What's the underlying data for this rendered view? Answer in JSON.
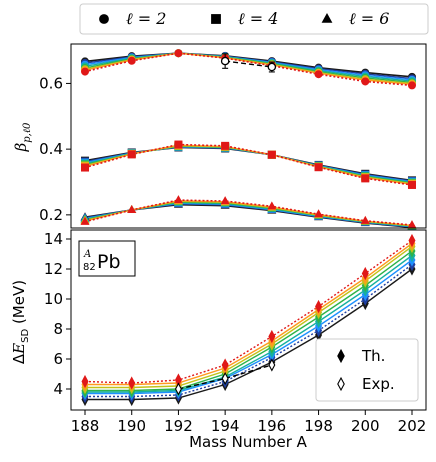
{
  "legend_top": [
    {
      "marker": "circle",
      "label": "ℓ = 2"
    },
    {
      "marker": "square",
      "label": "ℓ = 4"
    },
    {
      "marker": "triangle",
      "label": "ℓ = 6"
    }
  ],
  "chart_data": [
    {
      "type": "line",
      "ylabel": "β_{p,ℓ0}",
      "ylim": [
        0.16,
        0.72
      ],
      "yticks": [
        0.2,
        0.4,
        0.6
      ],
      "x": [
        188,
        190,
        192,
        194,
        196,
        198,
        200,
        202
      ],
      "colors": [
        "#1a1a1a",
        "#1f3fa0",
        "#1e90ff",
        "#16b0a0",
        "#2db34a",
        "#c2c21a",
        "#ff9a1e",
        "#e01818"
      ],
      "groups": [
        {
          "name": "ℓ = 2",
          "marker": "circle",
          "series": [
            {
              "values": [
                0.667,
                0.683,
                0.692,
                0.684,
                0.668,
                0.648,
                0.633,
                0.62
              ]
            },
            {
              "values": [
                0.662,
                0.681,
                0.692,
                0.683,
                0.666,
                0.645,
                0.629,
                0.615
              ]
            },
            {
              "values": [
                0.657,
                0.679,
                0.692,
                0.682,
                0.664,
                0.642,
                0.625,
                0.611
              ]
            },
            {
              "values": [
                0.652,
                0.677,
                0.692,
                0.681,
                0.662,
                0.639,
                0.621,
                0.607
              ]
            },
            {
              "values": [
                0.647,
                0.675,
                0.692,
                0.68,
                0.66,
                0.636,
                0.617,
                0.603
              ]
            },
            {
              "values": [
                0.643,
                0.673,
                0.692,
                0.679,
                0.658,
                0.633,
                0.613,
                0.6
              ]
            },
            {
              "values": [
                0.64,
                0.671,
                0.692,
                0.678,
                0.656,
                0.631,
                0.61,
                0.597
              ]
            },
            {
              "values": [
                0.636,
                0.669,
                0.692,
                0.677,
                0.654,
                0.628,
                0.606,
                0.594
              ]
            }
          ]
        },
        {
          "name": "ℓ = 4",
          "marker": "square",
          "series": [
            {
              "values": [
                0.365,
                0.39,
                0.405,
                0.402,
                0.383,
                0.352,
                0.325,
                0.305
              ]
            },
            {
              "values": [
                0.362,
                0.389,
                0.406,
                0.403,
                0.383,
                0.351,
                0.323,
                0.303
              ]
            },
            {
              "values": [
                0.359,
                0.388,
                0.407,
                0.404,
                0.383,
                0.35,
                0.321,
                0.301
              ]
            },
            {
              "values": [
                0.356,
                0.387,
                0.408,
                0.405,
                0.383,
                0.349,
                0.319,
                0.299
              ]
            },
            {
              "values": [
                0.353,
                0.386,
                0.409,
                0.406,
                0.383,
                0.348,
                0.317,
                0.297
              ]
            },
            {
              "values": [
                0.35,
                0.386,
                0.41,
                0.407,
                0.383,
                0.347,
                0.315,
                0.295
              ]
            },
            {
              "values": [
                0.347,
                0.385,
                0.412,
                0.408,
                0.383,
                0.346,
                0.313,
                0.293
              ]
            },
            {
              "values": [
                0.344,
                0.384,
                0.414,
                0.41,
                0.383,
                0.345,
                0.311,
                0.291
              ]
            }
          ]
        },
        {
          "name": "ℓ = 6",
          "marker": "triangle",
          "series": [
            {
              "values": [
                0.193,
                0.215,
                0.231,
                0.228,
                0.213,
                0.193,
                0.175,
                0.162
              ]
            },
            {
              "values": [
                0.191,
                0.215,
                0.233,
                0.23,
                0.215,
                0.194,
                0.176,
                0.163
              ]
            },
            {
              "values": [
                0.189,
                0.215,
                0.235,
                0.232,
                0.216,
                0.195,
                0.177,
                0.164
              ]
            },
            {
              "values": [
                0.187,
                0.215,
                0.237,
                0.234,
                0.218,
                0.197,
                0.178,
                0.165
              ]
            },
            {
              "values": [
                0.185,
                0.215,
                0.239,
                0.236,
                0.22,
                0.198,
                0.179,
                0.166
              ]
            },
            {
              "values": [
                0.183,
                0.215,
                0.241,
                0.238,
                0.222,
                0.199,
                0.18,
                0.167
              ]
            },
            {
              "values": [
                0.181,
                0.215,
                0.243,
                0.24,
                0.224,
                0.201,
                0.181,
                0.168
              ]
            },
            {
              "values": [
                0.179,
                0.215,
                0.245,
                0.242,
                0.226,
                0.202,
                0.182,
                0.169
              ]
            }
          ]
        }
      ],
      "experiment": {
        "x": [
          194,
          196
        ],
        "values": [
          0.668,
          0.65
        ],
        "errors": [
          0.022,
          0.015
        ]
      }
    },
    {
      "type": "line",
      "ylabel": "ΔE_SD (MeV)",
      "xlabel": "Mass Number A",
      "ylim": [
        2.6,
        14.6
      ],
      "yticks": [
        4,
        6,
        8,
        10,
        12,
        14
      ],
      "xticks": [
        188,
        190,
        192,
        194,
        196,
        198,
        200,
        202
      ],
      "x": [
        188,
        190,
        192,
        194,
        196,
        198,
        200,
        202
      ],
      "inset_label": "A 82 Pb",
      "series": [
        {
          "values": [
            3.3,
            3.3,
            3.4,
            4.3,
            5.8,
            7.6,
            9.7,
            12.0
          ]
        },
        {
          "values": [
            3.5,
            3.5,
            3.6,
            4.5,
            6.1,
            7.9,
            10.0,
            12.3
          ]
        },
        {
          "values": [
            3.7,
            3.7,
            3.8,
            4.7,
            6.3,
            8.2,
            10.3,
            12.6
          ]
        },
        {
          "values": [
            3.8,
            3.8,
            3.9,
            4.8,
            6.5,
            8.5,
            10.6,
            12.9
          ]
        },
        {
          "values": [
            3.9,
            3.9,
            4.0,
            5.0,
            6.8,
            8.8,
            10.9,
            13.2
          ]
        },
        {
          "values": [
            4.1,
            4.1,
            4.2,
            5.2,
            7.0,
            9.1,
            11.2,
            13.5
          ]
        },
        {
          "values": [
            4.3,
            4.3,
            4.4,
            5.4,
            7.2,
            9.3,
            11.4,
            13.7
          ]
        },
        {
          "values": [
            4.5,
            4.4,
            4.6,
            5.6,
            7.5,
            9.5,
            11.7,
            13.9
          ]
        }
      ],
      "experiment": {
        "x": [
          192,
          194,
          196
        ],
        "values": [
          4.0,
          4.7,
          5.6
        ]
      },
      "legend": [
        {
          "marker": "diamond-filled",
          "label": "Th."
        },
        {
          "marker": "diamond-open",
          "label": "Exp."
        }
      ]
    }
  ]
}
